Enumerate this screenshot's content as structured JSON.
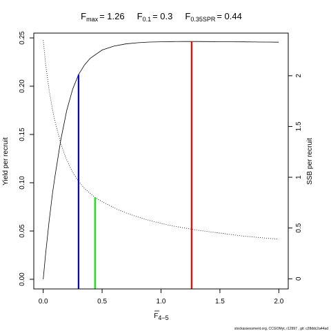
{
  "chart_data": {
    "type": "line",
    "title_parts": [
      {
        "base": "F",
        "sub": "max",
        "value": "= 1.26"
      },
      {
        "base": "F",
        "sub": "0.1",
        "value": "= 0.3"
      },
      {
        "base": "F",
        "sub": "0.35SPR",
        "value": "= 0.44"
      }
    ],
    "xlabel": {
      "base": "F",
      "sub": "4−5"
    },
    "ylabel_left": "Yield per recruit",
    "ylabel_right": "SSB per recruit",
    "xlim": [
      -0.08,
      2.08
    ],
    "ylim_left": [
      -0.01,
      0.255
    ],
    "ylim_right": [
      -0.1,
      2.42
    ],
    "x_ticks": [
      {
        "value": 0,
        "label": "0.0"
      },
      {
        "value": 0.5,
        "label": "0.5"
      },
      {
        "value": 1.0,
        "label": "1.0"
      },
      {
        "value": 1.5,
        "label": "1.5"
      },
      {
        "value": 2.0,
        "label": "2.0"
      }
    ],
    "y_ticks_left": [
      {
        "value": 0.0,
        "label": "0.00"
      },
      {
        "value": 0.05,
        "label": "0.05"
      },
      {
        "value": 0.1,
        "label": "0.10"
      },
      {
        "value": 0.15,
        "label": "0.15"
      },
      {
        "value": 0.2,
        "label": "0.20"
      },
      {
        "value": 0.25,
        "label": "0.25"
      }
    ],
    "y_ticks_right": [
      {
        "value": 0,
        "label": "0"
      },
      {
        "value": 0.5,
        "label": "0.5"
      },
      {
        "value": 1,
        "label": "1"
      },
      {
        "value": 1.5,
        "label": "1.5"
      },
      {
        "value": 2,
        "label": "2"
      }
    ],
    "series": [
      {
        "axis": "left",
        "style": "solid",
        "color": "#000000",
        "x": [
          0,
          0.02,
          0.05,
          0.08,
          0.1,
          0.15,
          0.2,
          0.25,
          0.3,
          0.35,
          0.4,
          0.5,
          0.6,
          0.7,
          0.8,
          0.9,
          1.0,
          1.1,
          1.2,
          1.26,
          1.3,
          1.4,
          1.5,
          1.6,
          1.7,
          1.8,
          1.9,
          2.0
        ],
        "values": [
          0.0,
          0.026,
          0.06,
          0.09,
          0.107,
          0.145,
          0.175,
          0.197,
          0.212,
          0.222,
          0.229,
          0.2375,
          0.2415,
          0.2438,
          0.245,
          0.2457,
          0.246,
          0.2462,
          0.2463,
          0.2463,
          0.2463,
          0.2462,
          0.2461,
          0.246,
          0.2459,
          0.2458,
          0.2457,
          0.2456
        ]
      },
      {
        "axis": "right",
        "style": "dotted",
        "color": "#000000",
        "x": [
          0,
          0.02,
          0.05,
          0.08,
          0.1,
          0.15,
          0.2,
          0.25,
          0.3,
          0.35,
          0.4,
          0.44,
          0.5,
          0.6,
          0.7,
          0.8,
          0.9,
          1.0,
          1.1,
          1.2,
          1.3,
          1.4,
          1.5,
          1.6,
          1.7,
          1.8,
          1.9,
          2.0
        ],
        "values": [
          2.35,
          2.12,
          1.86,
          1.66,
          1.55,
          1.33,
          1.17,
          1.05,
          0.96,
          0.89,
          0.84,
          0.8,
          0.76,
          0.7,
          0.65,
          0.61,
          0.575,
          0.545,
          0.52,
          0.5,
          0.48,
          0.465,
          0.45,
          0.435,
          0.42,
          0.41,
          0.4,
          0.39
        ]
      }
    ],
    "reference_lines": [
      {
        "name": "F0.1",
        "x": 0.3,
        "y": 0.212,
        "color": "#0000ff"
      },
      {
        "name": "F0.35SPR",
        "x": 0.44,
        "y": 0.085,
        "color": "#00ee00"
      },
      {
        "name": "Fmax",
        "x": 1.26,
        "y": 0.2463,
        "color": "#ff0000"
      }
    ],
    "grid": false,
    "legend": "none",
    "footer": "stockassessment.org, CCGOMyt, r12997 , git: c28ddc2a44ad"
  }
}
